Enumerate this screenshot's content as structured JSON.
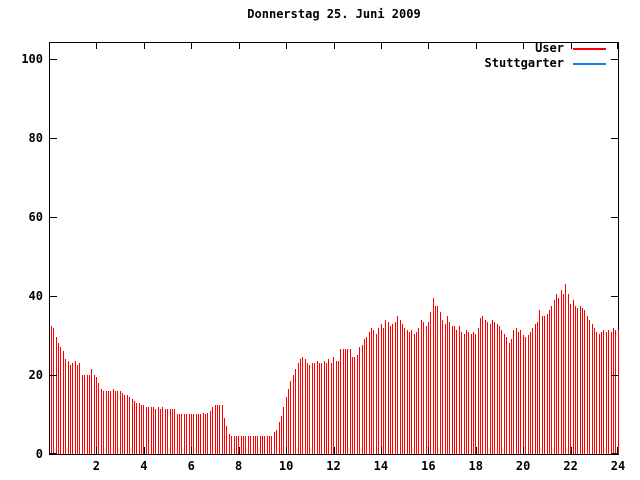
{
  "title": "Donnerstag 25. Juni 2009",
  "legend": {
    "items": [
      {
        "label": "User",
        "color": "#ff0000"
      },
      {
        "label": "Stuttgarter",
        "color": "#0f80e0"
      }
    ]
  },
  "axes": {
    "y_ticks": [
      0,
      20,
      40,
      60,
      80,
      100
    ],
    "x_ticks": [
      2,
      4,
      6,
      8,
      10,
      12,
      14,
      16,
      18,
      20,
      22,
      24
    ]
  },
  "chart_data": {
    "type": "bar",
    "style": "impulses",
    "title": "Donnerstag 25. Juni 2009",
    "xlabel": "",
    "ylabel": "",
    "xlim": [
      0,
      24
    ],
    "ylim": [
      0,
      104
    ],
    "grid": false,
    "legend_position": "top-right",
    "x_unit": "hours",
    "x_start": 0,
    "x_step": 0.1,
    "series": [
      {
        "name": "User",
        "color": "#ff0000",
        "values": [
          32.5,
          32,
          29.5,
          28,
          27,
          26,
          24,
          23.5,
          22.5,
          23,
          23.5,
          22.5,
          23,
          20,
          20,
          20,
          20,
          21.5,
          20,
          19.5,
          18,
          16.5,
          16,
          16,
          16,
          16,
          16.5,
          16,
          16,
          16,
          15.5,
          15,
          15,
          14.5,
          14,
          13.5,
          13,
          13,
          12.5,
          12.5,
          12,
          12,
          12,
          12,
          11.5,
          12,
          11.5,
          12,
          11.5,
          11.5,
          11.5,
          11.5,
          11.5,
          10,
          10,
          10,
          10,
          10,
          10,
          10,
          10,
          10,
          10,
          10,
          10.5,
          10,
          10.5,
          11,
          12,
          12.5,
          12.5,
          12.5,
          12.5,
          9,
          7,
          5,
          4.5,
          4.5,
          4.5,
          4.5,
          4.5,
          4.5,
          4.5,
          4.5,
          4.5,
          4.5,
          4.5,
          4.5,
          4.5,
          4.5,
          4.5,
          4.5,
          4.5,
          4.5,
          5.5,
          6,
          8,
          9.5,
          12,
          14.5,
          16.5,
          18.5,
          20,
          21.5,
          23,
          24,
          24.5,
          24,
          23,
          22.5,
          23,
          23,
          23.5,
          23,
          23,
          23.5,
          23,
          24,
          23,
          24.5,
          23.5,
          23.5,
          26.5,
          26.5,
          26.5,
          26.5,
          26.5,
          24.5,
          24.5,
          25,
          27,
          27.5,
          29,
          29.5,
          31,
          32,
          31.5,
          30.5,
          32,
          33,
          32,
          34,
          33.5,
          32.5,
          33,
          33.5,
          35,
          34,
          33,
          32,
          31.5,
          31,
          31.5,
          30.5,
          31,
          32,
          34,
          33.5,
          32.5,
          33.5,
          36,
          39.5,
          37.5,
          37.5,
          36,
          34,
          33,
          35,
          33.5,
          32.5,
          32.5,
          31.5,
          32.5,
          31,
          30.5,
          31.5,
          31,
          30.5,
          31,
          30.5,
          32,
          34.5,
          35,
          34,
          33.5,
          33,
          34,
          33.5,
          33,
          32.5,
          31.5,
          30.5,
          29.5,
          28,
          29,
          31.5,
          32,
          31,
          31.5,
          30,
          29.5,
          30,
          31,
          32,
          33,
          33.5,
          36.5,
          35,
          35,
          35.5,
          36.5,
          37.5,
          39,
          40.5,
          39.5,
          41.5,
          40.5,
          43,
          40.5,
          38,
          39,
          37.5,
          37,
          37.5,
          37,
          36.5,
          35,
          34,
          33,
          32,
          31,
          30.5,
          31,
          31.5,
          31,
          31.5,
          31,
          32,
          31.5,
          31.5
        ]
      },
      {
        "name": "Stuttgarter",
        "color": "#0f80e0",
        "values": []
      }
    ]
  }
}
